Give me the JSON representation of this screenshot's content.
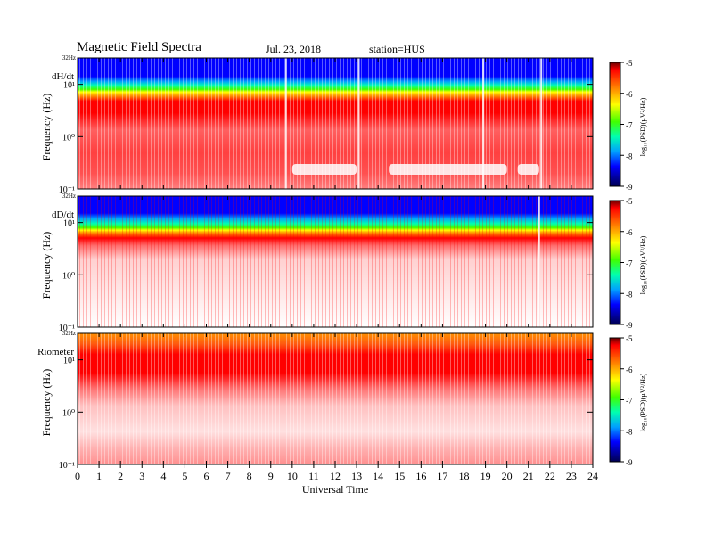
{
  "header": {
    "title": "Magnetic  Field  Spectra",
    "date": "Jul.  23, 2018",
    "station": "station=HUS"
  },
  "colors": {
    "scale": [
      "#000060",
      "#0000ff",
      "#00a0ff",
      "#00ffb0",
      "#40ff00",
      "#ffff00",
      "#ff9000",
      "#ff0000",
      "#ff6060",
      "#ffffff"
    ]
  },
  "chart_data": [
    {
      "type": "heatmap",
      "panel_label": "dH/dt",
      "ylabel": "Frequency  (Hz)",
      "yscale": "log",
      "ylim": [
        0.1,
        32
      ],
      "y_top_label": "32Hz",
      "y_ticks": [
        "10¹",
        "10⁰",
        "10⁻¹"
      ],
      "colorbar_label": "log₁₀(PSD)(µV²/Hz)",
      "colorbar_ticks": [
        "-5",
        "-6",
        "-7",
        "-8",
        "-9"
      ],
      "colorbar_range": [
        -9,
        -5
      ],
      "features": {
        "blue_above_hz": 12,
        "red_band_hz": [
          3,
          6
        ],
        "spikes_ut": [
          9.7,
          13.1,
          18.9,
          21.6
        ],
        "quiet_intervals_ut": [
          [
            10,
            13
          ],
          [
            14.5,
            20
          ],
          [
            20.5,
            21.5
          ]
        ]
      }
    },
    {
      "type": "heatmap",
      "panel_label": "dD/dt",
      "ylabel": "Frequency  (Hz)",
      "yscale": "log",
      "ylim": [
        0.1,
        32
      ],
      "y_top_label": "32Hz",
      "y_ticks": [
        "10¹",
        "10⁰",
        "10⁻¹"
      ],
      "colorbar_label": "log₁₀(PSD)(µV²/Hz)",
      "colorbar_ticks": [
        "-5",
        "-6",
        "-7",
        "-8",
        "-9"
      ],
      "colorbar_range": [
        -9,
        -5
      ],
      "features": {
        "blue_above_hz": 12,
        "red_band_hz": [
          3,
          6
        ],
        "spikes_ut": [
          21.5
        ]
      }
    },
    {
      "type": "heatmap",
      "panel_label": "Riometer",
      "ylabel": "Frequency  (Hz)",
      "yscale": "log",
      "ylim": [
        0.1,
        32
      ],
      "y_top_label": "32Hz",
      "y_ticks": [
        "10¹",
        "10⁰",
        "10⁻¹"
      ],
      "colorbar_label": "log₁₀(PSD)(µV²/Hz)",
      "colorbar_ticks": [
        "-5",
        "-6",
        "-7",
        "-8",
        "-9"
      ],
      "colorbar_range": [
        -9,
        -5
      ],
      "features": {
        "orange_above_hz": 15,
        "red_band_hz": [
          4,
          15
        ]
      }
    }
  ],
  "xaxis": {
    "label": "Universal  Time",
    "ticks": [
      "0",
      "1",
      "2",
      "3",
      "4",
      "5",
      "6",
      "7",
      "8",
      "9",
      "10",
      "11",
      "12",
      "13",
      "14",
      "15",
      "16",
      "17",
      "18",
      "19",
      "20",
      "21",
      "22",
      "23",
      "24"
    ],
    "xlim": [
      0,
      24
    ]
  }
}
